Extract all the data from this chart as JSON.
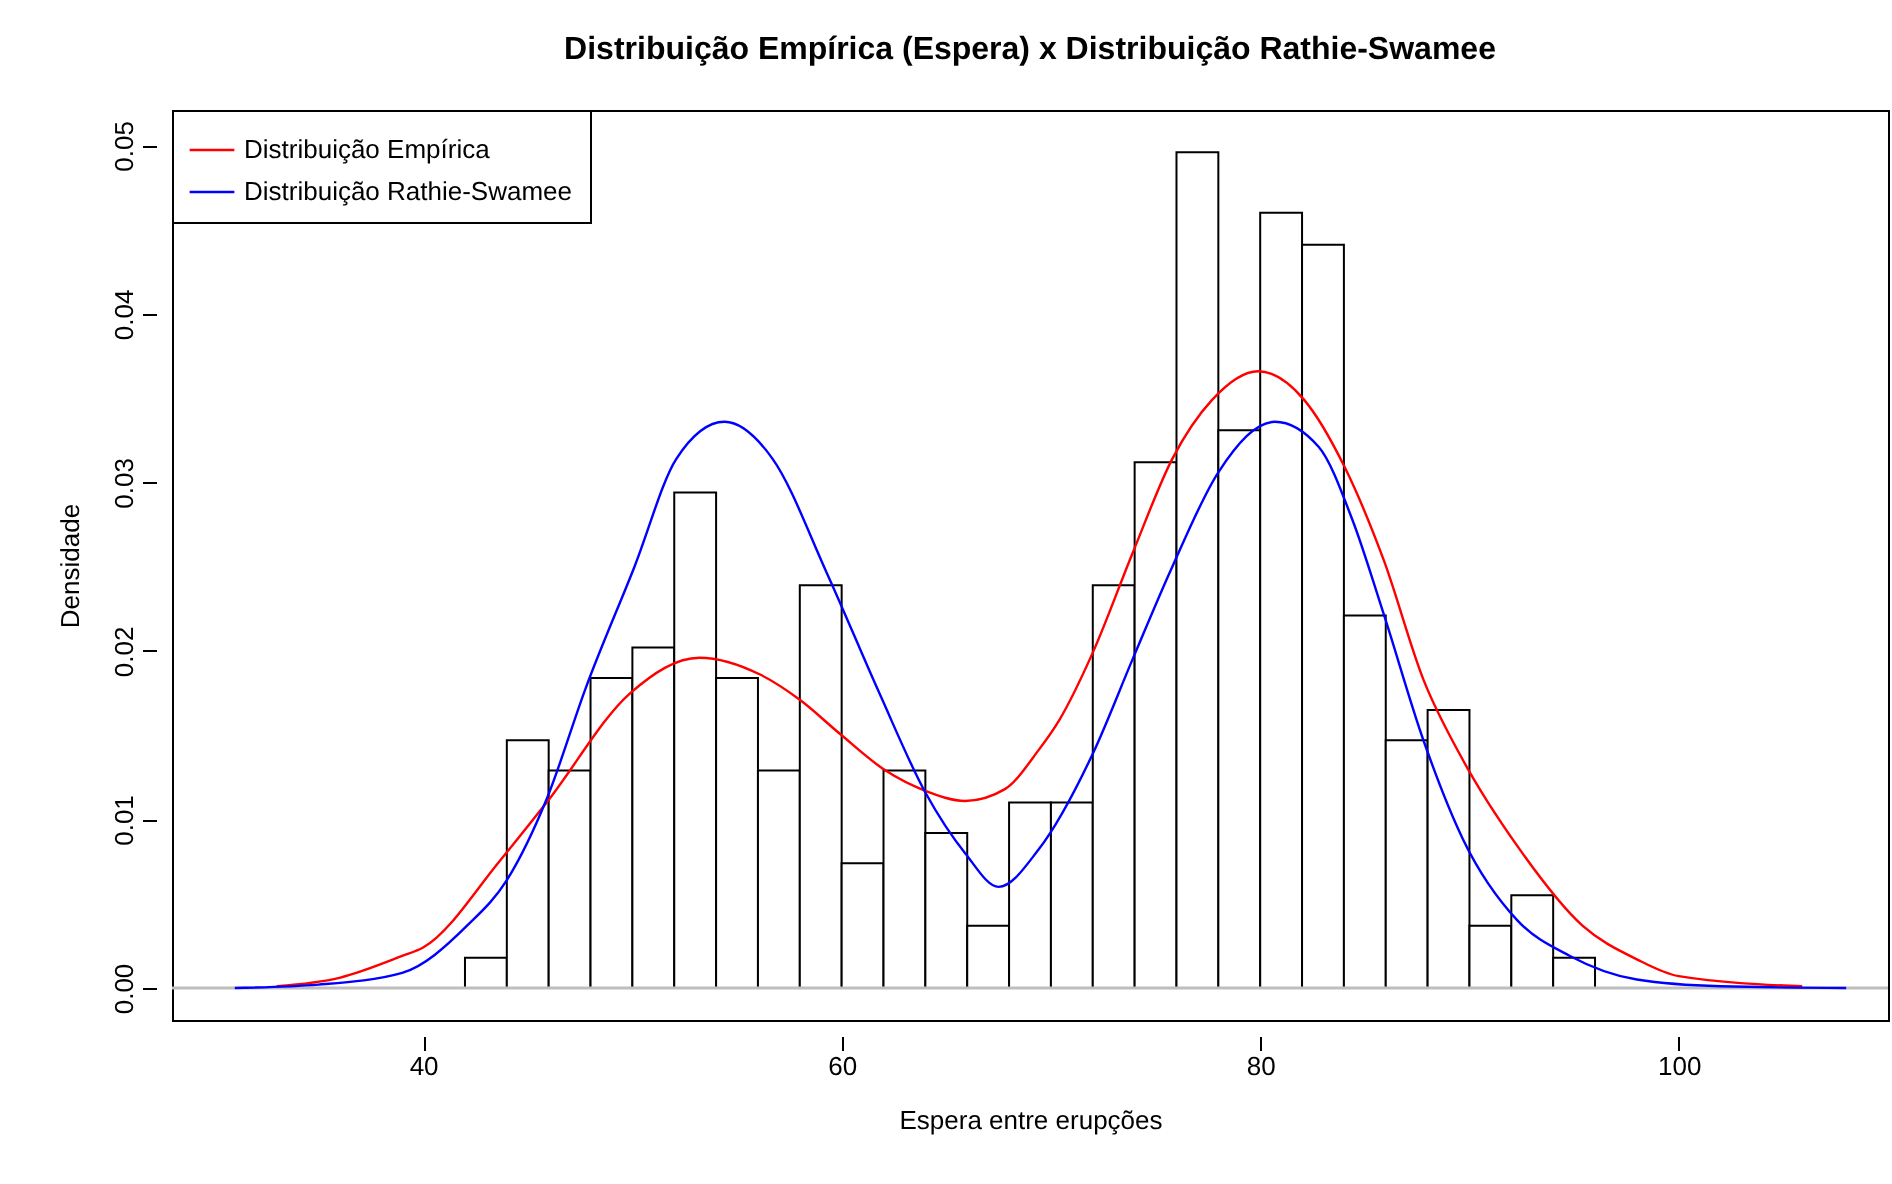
{
  "chart_data": {
    "type": "histogram",
    "title": "Distribuição Empírica (Espera) x Distribuição Rathie-Swamee",
    "xlabel": "Espera entre erupções",
    "ylabel": "Densidade",
    "bins": [
      42,
      44,
      46,
      48,
      50,
      52,
      54,
      56,
      58,
      60,
      62,
      64,
      66,
      68,
      70,
      72,
      74,
      76,
      78,
      80,
      82,
      84,
      86,
      88,
      90,
      92,
      94,
      96
    ],
    "values": [
      0.0018,
      0.0147,
      0.0129,
      0.0184,
      0.0202,
      0.0294,
      0.0184,
      0.0129,
      0.0239,
      0.0074,
      0.0129,
      0.0092,
      0.0037,
      0.011,
      0.011,
      0.0239,
      0.0312,
      0.0496,
      0.0331,
      0.046,
      0.0441,
      0.0221,
      0.0147,
      0.0165,
      0.0037,
      0.0055,
      0.0018
    ],
    "series": [
      {
        "name": "Distribuição Empírica",
        "color": "#ff0000",
        "type": "line",
        "x": [
          33,
          36,
          39,
          40,
          43.7,
          45.9,
          49.9,
          53.2,
          56.1,
          58,
          59.9,
          62.1,
          64,
          65.9,
          67.8,
          69.4,
          70.4,
          72,
          73.9,
          75.8,
          77.7,
          79.9,
          82.1,
          84,
          85.9,
          87.8,
          89.7,
          92.3,
          95.4,
          98,
          100,
          105.9
        ],
        "values": [
          0.0001,
          0.0006,
          0.0019,
          0.0024,
          0.0076,
          0.011,
          0.0175,
          0.0196,
          0.0186,
          0.0171,
          0.0151,
          0.0129,
          0.0117,
          0.0111,
          0.0118,
          0.0141,
          0.0159,
          0.0199,
          0.0258,
          0.0314,
          0.0349,
          0.0366,
          0.0349,
          0.031,
          0.0254,
          0.0183,
          0.0135,
          0.0084,
          0.0037,
          0.0017,
          0.0007,
          0.0001
        ]
      },
      {
        "name": "Distribuição Rathie-Swamee",
        "color": "#0000ff",
        "type": "line",
        "x": [
          31,
          35,
          39,
          42.1,
          44,
          45.9,
          47.8,
          50.1,
          52.1,
          54.4,
          56.7,
          59.3,
          61.8,
          64,
          65.9,
          67.5,
          69.4,
          72,
          73.9,
          75.8,
          78,
          80.7,
          82.8,
          84.4,
          85.9,
          87.8,
          89.7,
          92.3,
          94.8,
          98,
          102,
          108
        ],
        "values": [
          0,
          0.0002,
          0.0009,
          0.0037,
          0.0064,
          0.0112,
          0.0179,
          0.025,
          0.0314,
          0.0336,
          0.0314,
          0.0246,
          0.0175,
          0.0116,
          0.008,
          0.006,
          0.0082,
          0.0139,
          0.0195,
          0.025,
          0.0306,
          0.0336,
          0.0321,
          0.0278,
          0.0222,
          0.0147,
          0.0088,
          0.004,
          0.0019,
          0.0005,
          0.0001,
          0
        ]
      }
    ],
    "xlim": [
      28,
      110
    ],
    "ylim": [
      -0.0019,
      0.0521
    ],
    "xticks": [
      40,
      60,
      80,
      100
    ],
    "yticks": [
      {
        "value": 0,
        "label": "0.00"
      },
      {
        "value": 0.01,
        "label": "0.01"
      },
      {
        "value": 0.02,
        "label": "0.02"
      },
      {
        "value": 0.03,
        "label": "0.03"
      },
      {
        "value": 0.04,
        "label": "0.04"
      },
      {
        "value": 0.05,
        "label": "0.05"
      }
    ],
    "ref_lines": [
      {
        "axis": "y",
        "value": 0,
        "color": "#bebebe"
      }
    ],
    "legend": "top left",
    "grid": false
  }
}
